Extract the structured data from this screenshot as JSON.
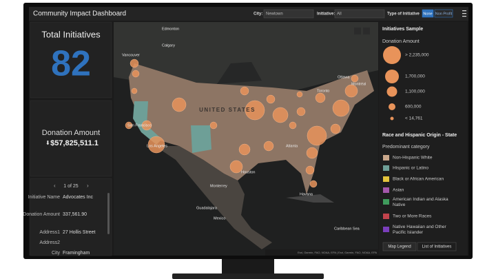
{
  "header": {
    "title": "Community Impact Dashboard",
    "city_label": "City:",
    "city_value": "Newtown",
    "initiative_label": "Initiative:",
    "initiative_value": "All",
    "type_label": "Type of Initiative",
    "type_buttons": [
      "None",
      "Non Profit"
    ]
  },
  "total_panel": {
    "title": "Total Initiatives",
    "value": "82"
  },
  "donation_panel": {
    "title": "Donation Amount",
    "value": "$57,825,511.1"
  },
  "details_panel": {
    "pager": "1 of 25",
    "rows": [
      [
        "Initiative Name",
        "Advocates Inc"
      ],
      [
        "Donation Amount",
        "337,561.90"
      ],
      [
        "Address1",
        "27 Hollis Street"
      ],
      [
        "Address2",
        ""
      ],
      [
        "City",
        "Framingham"
      ]
    ]
  },
  "map": {
    "country_label": "UNITED STATES",
    "places": [
      "Edmonton",
      "Calgary",
      "Vancouver",
      "Toronto",
      "Ottawa",
      "Montréal",
      "San Francisco",
      "Los Angeles",
      "Houston",
      "Monterrey",
      "Mexico",
      "Guadalajara",
      "Havana",
      "Atlanta",
      "Caribbean Sea"
    ],
    "attribution": "Esri, Garmin, FAO, NOAA, EPA | Esri, Garmin, FAO, NOAA, EPA"
  },
  "legend": {
    "title": "Initiatives Sample",
    "size_title": "Donation Amount",
    "size_items": [
      "> 2,235,000",
      "1,700,000",
      "1,100,000",
      "600,000",
      "< 14,761"
    ],
    "category_title": "Race and Hispanic Origin - State",
    "category_subtitle": "Predominant category",
    "categories": [
      {
        "name": "Non-Hispanic White",
        "color": "#c9a78b"
      },
      {
        "name": "Hispanic or Latino",
        "color": "#6e9f97"
      },
      {
        "name": "Black or African American",
        "color": "#e3c43c"
      },
      {
        "name": "Asian",
        "color": "#a457ab"
      },
      {
        "name": "American Indian and Alaska Native",
        "color": "#3f9b5c"
      },
      {
        "name": "Two or More Races",
        "color": "#c2434c"
      },
      {
        "name": "Native Hawaiian and Other Pacific Islander",
        "color": "#7a3ebb"
      }
    ],
    "tabs": [
      "Map Legend",
      "List of Initiatives"
    ]
  }
}
